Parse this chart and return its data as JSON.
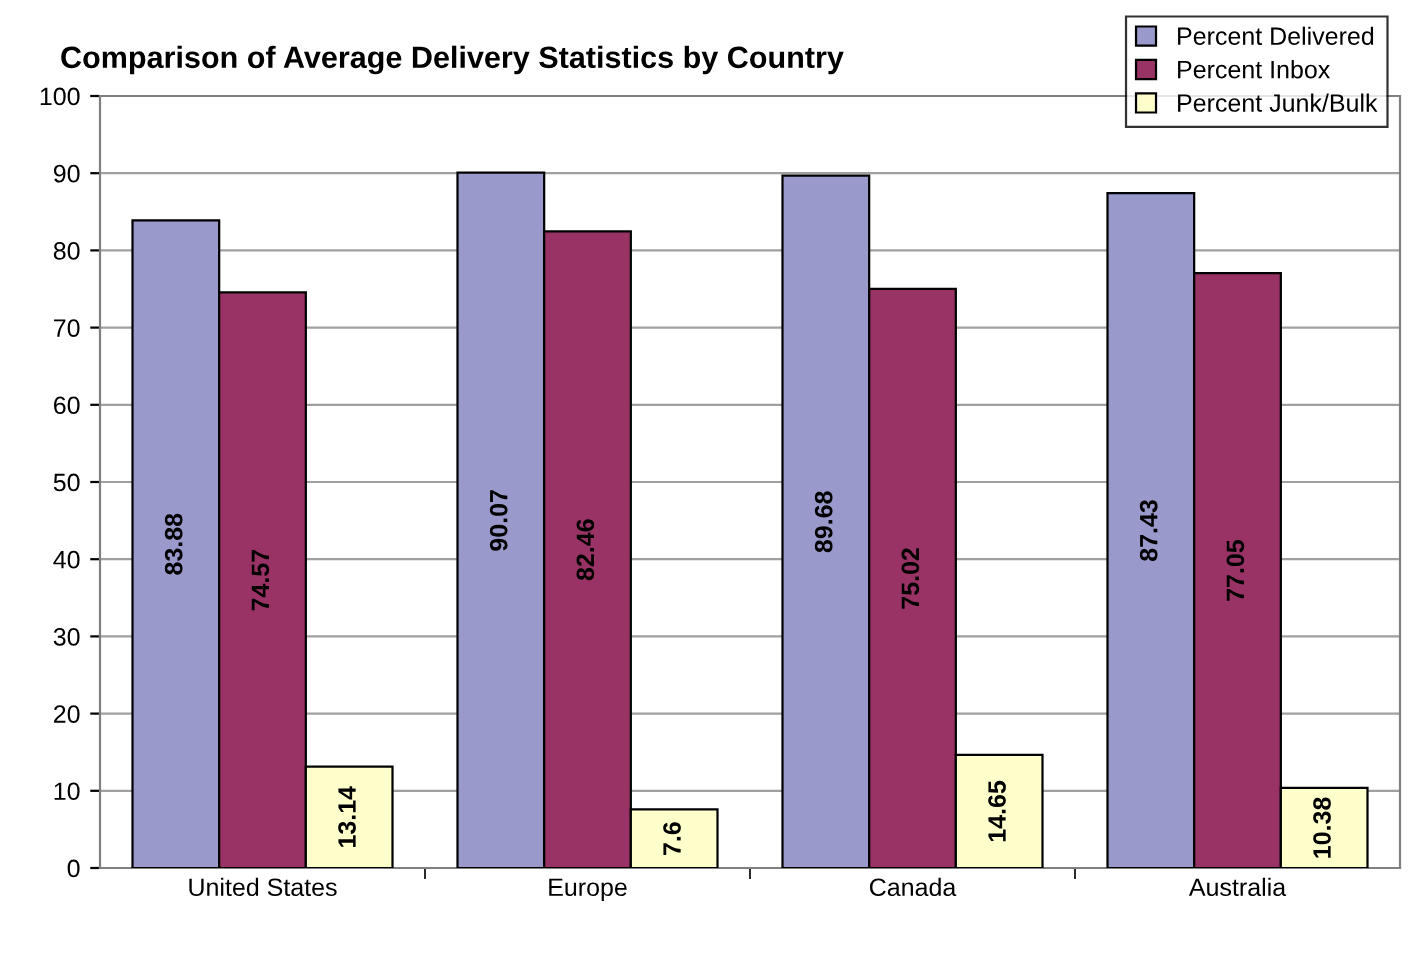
{
  "chart_data": {
    "type": "bar",
    "title": "Comparison of Average Delivery Statistics by Country",
    "categories": [
      "United States",
      "Europe",
      "Canada",
      "Australia"
    ],
    "series": [
      {
        "name": "Percent Delivered",
        "color": "#9999cc",
        "values": [
          83.88,
          90.07,
          89.68,
          87.43
        ]
      },
      {
        "name": "Percent Inbox",
        "color": "#993366",
        "values": [
          74.57,
          82.46,
          75.02,
          77.05
        ]
      },
      {
        "name": "Percent Junk/Bulk",
        "color": "#ffffcc",
        "values": [
          13.14,
          7.6,
          14.65,
          10.38
        ]
      }
    ],
    "ylim": [
      0,
      100
    ],
    "yticks": [
      0,
      10,
      20,
      30,
      40,
      50,
      60,
      70,
      80,
      90,
      100
    ],
    "grid": "y",
    "legend": "top right",
    "data_labels": true
  }
}
